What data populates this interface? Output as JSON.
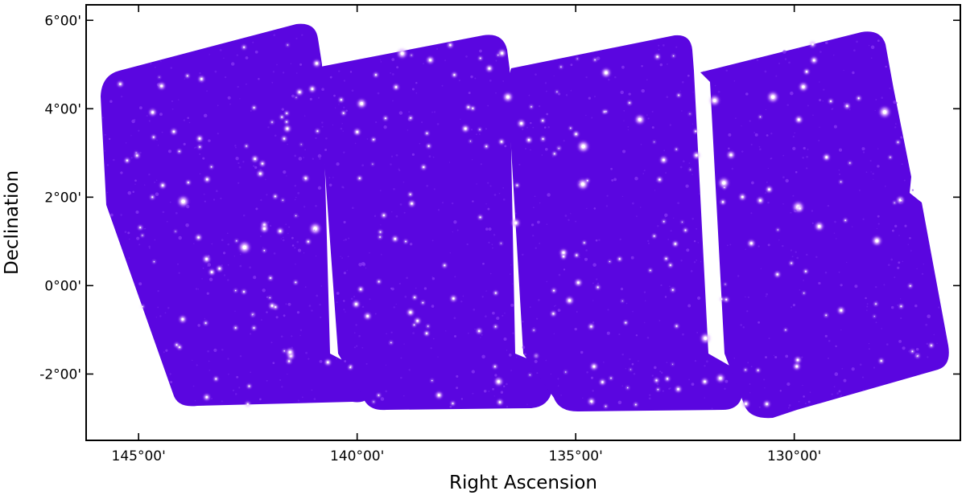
{
  "chart_data": {
    "type": "sky-map",
    "xlabel": "Right Ascension",
    "ylabel": "Declination",
    "x_axis_reversed": true,
    "xlim": [
      146.2,
      126.2
    ],
    "ylim": [
      -3.5,
      6.35
    ],
    "x_ticks": [
      {
        "value": 145,
        "label": "145°00'"
      },
      {
        "value": 140,
        "label": "140°00'"
      },
      {
        "value": 135,
        "label": "135°00'"
      },
      {
        "value": 130,
        "label": "130°00'"
      }
    ],
    "y_ticks": [
      {
        "value": 6,
        "label": "6°00'"
      },
      {
        "value": 4,
        "label": "4°00'"
      },
      {
        "value": 2,
        "label": "2°00'"
      },
      {
        "value": 0,
        "label": "0°00'"
      },
      {
        "value": -2,
        "label": "-2°00'"
      }
    ],
    "colors": {
      "background_emission": "#5a06e0",
      "source_low": "#9a45ff",
      "source_high": "#f3d6ff",
      "frame": "#000000"
    },
    "grid": false,
    "legend": "none"
  }
}
